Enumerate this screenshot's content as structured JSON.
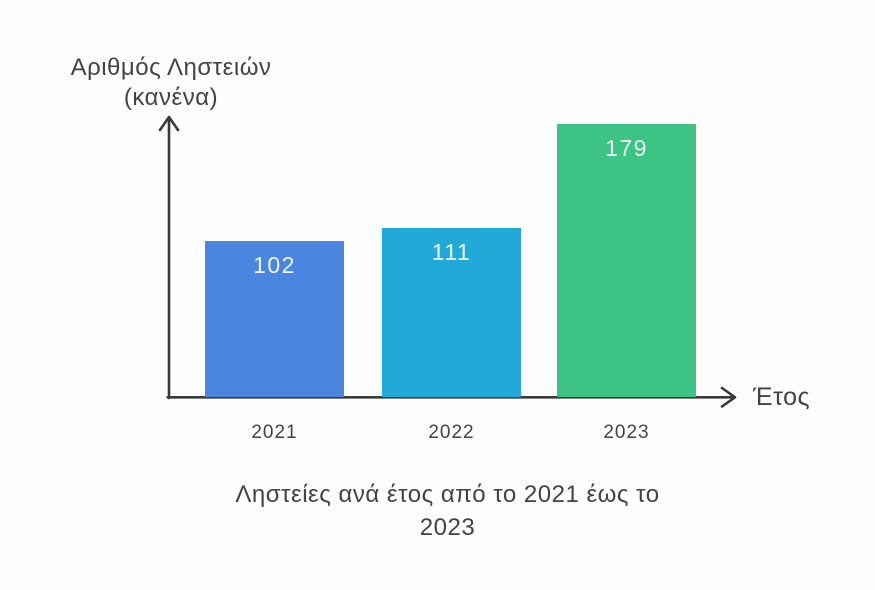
{
  "chart": {
    "y_axis_label_lines": [
      "Αριθμός Ληστειών",
      "(κανένα)"
    ],
    "x_axis_label": "Έτος",
    "title_lines": [
      "Ληστείες ανά έτος από το 2021 έως το",
      "2023"
    ]
  },
  "chart_data": {
    "type": "bar",
    "title": "Ληστείες ανά έτος από το 2021 έως το 2023",
    "xlabel": "Έτος",
    "ylabel": "Αριθμός Ληστειών (κανένα)",
    "categories": [
      "2021",
      "2022",
      "2023"
    ],
    "values": [
      102,
      111,
      179
    ],
    "bar_colors": [
      "#4a86e0",
      "#21a9d8",
      "#3dc484"
    ],
    "value_label_color": "#edf4f6",
    "axis_color": "#3a3a3a",
    "text_color": "#434343",
    "ylim": [
      0,
      185
    ],
    "grid": false,
    "legend": false,
    "value_labels_position": "inside-top"
  }
}
